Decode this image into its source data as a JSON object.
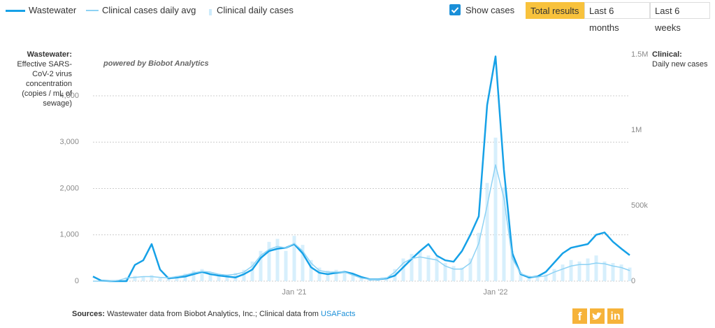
{
  "chart_data": {
    "type": "line",
    "annotation": "powered by Biobot Analytics",
    "y_label": "Wastewater:",
    "y_label_detail": "Effective SARS-CoV-2 virus concentration (copies / mL of sewage)",
    "y2_label": "Clinical:",
    "y2_label_detail": "Daily new cases",
    "categories": [
      null,
      null,
      null,
      null,
      null,
      null,
      null,
      null,
      null,
      null,
      null,
      null,
      null,
      null,
      null,
      null,
      null,
      null,
      null,
      null,
      null,
      null,
      null,
      null,
      "Jan '21",
      null,
      null,
      null,
      null,
      null,
      null,
      null,
      null,
      null,
      null,
      null,
      null,
      null,
      null,
      null,
      null,
      null,
      null,
      null,
      null,
      null,
      null,
      null,
      "Jan '22",
      null,
      null,
      null,
      null,
      null,
      null,
      null,
      null,
      null,
      null,
      null,
      null,
      null,
      null,
      null,
      null
    ],
    "ylim": [
      0,
      4890
    ],
    "yticks": [
      0,
      {
        "value": 1000,
        "label": "1,000"
      },
      {
        "value": 2000,
        "label": "2,000"
      },
      {
        "value": 3000,
        "label": "3,000"
      },
      {
        "value": 4000,
        "label": "4,000"
      }
    ],
    "y2lim": [
      0,
      1500000
    ],
    "y2ticks": [
      0,
      {
        "value": 500000,
        "label": "500k"
      },
      {
        "value": 1000000,
        "label": "1M"
      },
      {
        "value": 1500000,
        "label": "1.5M"
      }
    ],
    "grid": true,
    "series": [
      {
        "name": "Wastewater",
        "color": "#16a1e7",
        "values": [
          100,
          10,
          0,
          0,
          0,
          350,
          450,
          800,
          250,
          60,
          80,
          100,
          150,
          200,
          150,
          120,
          100,
          80,
          150,
          250,
          500,
          650,
          700,
          720,
          800,
          600,
          300,
          180,
          150,
          180,
          200,
          160,
          90,
          40,
          40,
          60,
          120,
          300,
          480,
          650,
          800,
          550,
          450,
          420,
          650,
          1000,
          1400,
          3800,
          4850,
          2400,
          600,
          150,
          80,
          100,
          200,
          400,
          600,
          720,
          760,
          800,
          1000,
          1050,
          850,
          700,
          560
        ]
      },
      {
        "name": "Clinical cases daily avg",
        "color": "#8dd2f4",
        "axis": "y2",
        "values": [
          0,
          0,
          0,
          5000,
          20000,
          25000,
          30000,
          30000,
          25000,
          22000,
          30000,
          40000,
          55000,
          65000,
          60000,
          45000,
          40000,
          45000,
          60000,
          100000,
          170000,
          210000,
          230000,
          220000,
          250000,
          200000,
          120000,
          70000,
          60000,
          60000,
          60000,
          40000,
          20000,
          12000,
          12000,
          20000,
          60000,
          120000,
          150000,
          160000,
          150000,
          140000,
          100000,
          80000,
          80000,
          120000,
          250000,
          500000,
          770000,
          550000,
          150000,
          50000,
          30000,
          28000,
          35000,
          60000,
          80000,
          100000,
          110000,
          110000,
          120000,
          115000,
          100000,
          90000,
          70000
        ]
      },
      {
        "name": "Clinical daily cases",
        "type": "bar",
        "color": "#cdebfb",
        "axis": "y2",
        "values": [
          0,
          0,
          0,
          8000,
          25000,
          35000,
          28000,
          40000,
          20000,
          30000,
          35000,
          50000,
          70000,
          80000,
          55000,
          50000,
          35000,
          55000,
          75000,
          130000,
          200000,
          260000,
          280000,
          200000,
          300000,
          240000,
          140000,
          90000,
          70000,
          75000,
          55000,
          45000,
          25000,
          15000,
          10000,
          25000,
          80000,
          150000,
          180000,
          200000,
          170000,
          160000,
          120000,
          100000,
          90000,
          150000,
          320000,
          650000,
          950000,
          620000,
          200000,
          60000,
          35000,
          32000,
          45000,
          80000,
          110000,
          140000,
          130000,
          150000,
          170000,
          130000,
          120000,
          110000,
          90000
        ]
      }
    ]
  },
  "controls": {
    "show_cases": "Show cases",
    "checked": true,
    "buttons": [
      "Total results",
      "Last 6 months",
      "Last 6 weeks"
    ],
    "active": 0
  },
  "sources": {
    "label": "Sources:",
    "text": "Wastewater data from Biobot Analytics, Inc.; Clinical data from",
    "link": "USAFacts"
  },
  "share": [
    "f",
    "in"
  ]
}
